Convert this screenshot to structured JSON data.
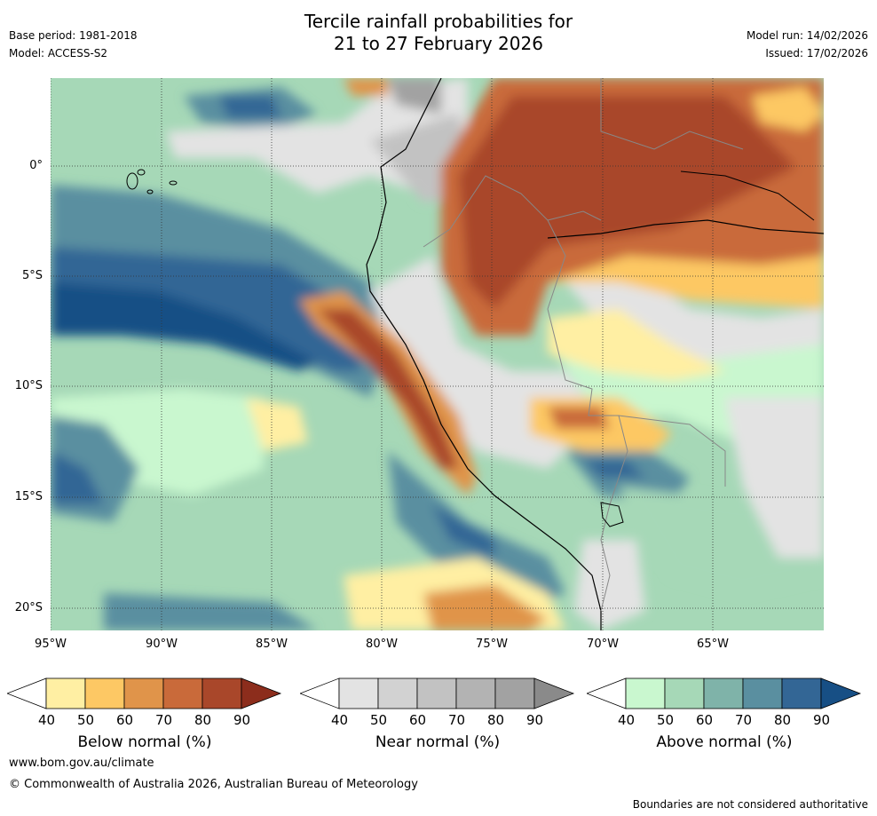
{
  "title": {
    "line1": "Tercile rainfall probabilities for",
    "line2": "21 to 27 February 2026"
  },
  "meta": {
    "base_period": "Base period: 1981-2018",
    "model": "Model: ACCESS-S2",
    "model_run": "Model run: 14/02/2026",
    "issued": "Issued: 17/02/2026"
  },
  "map": {
    "lat_labels": [
      "0°",
      "5°S",
      "10°S",
      "15°S",
      "20°S"
    ],
    "lon_labels": [
      "95°W",
      "90°W",
      "85°W",
      "80°W",
      "75°W",
      "70°W",
      "65°W"
    ]
  },
  "legends": {
    "ticks": [
      "40",
      "50",
      "60",
      "70",
      "80",
      "90"
    ],
    "below": {
      "label": "Below normal (%)",
      "colors": [
        "#ffefa3",
        "#fdc864",
        "#e0944a",
        "#c96a3a",
        "#a9472a",
        "#8c2d1c"
      ]
    },
    "near": {
      "label": "Near normal (%)",
      "colors": [
        "#e3e3e3",
        "#d2d2d2",
        "#c2c2c2",
        "#b3b3b3",
        "#a2a2a2",
        "#8a8a8a"
      ]
    },
    "above": {
      "label": "Above normal (%)",
      "colors": [
        "#c9f7cf",
        "#a6d8b7",
        "#7fb3a9",
        "#5a8fa0",
        "#336695",
        "#174f85"
      ]
    }
  },
  "footer": {
    "url": "www.bom.gov.au/climate",
    "copyright": "© Commonwealth of Australia 2026, Australian Bureau of Meteorology",
    "disclaimer": "Boundaries are not considered authoritative"
  }
}
